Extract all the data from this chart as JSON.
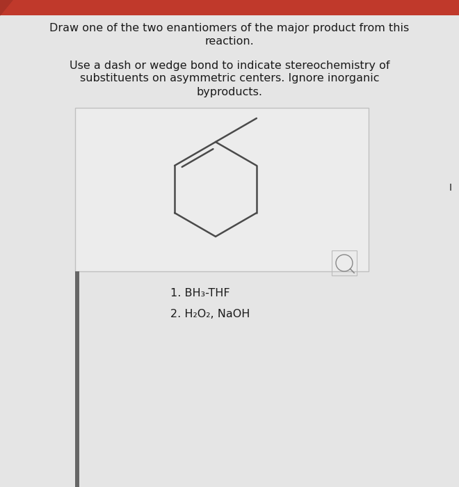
{
  "bg_color": "#e5e5e5",
  "header_color": "#c0392b",
  "text_color": "#1a1a1a",
  "bond_color": "#4a4a4a",
  "box_bg": "#ececec",
  "box_border": "#c0c0c0",
  "title_line1": "Draw one of the two enantiomers of the major product from this",
  "title_line2": "reaction.",
  "instruction_line1": "Use a dash or wedge bond to indicate stereochemistry of",
  "instruction_line2": "substituents on asymmetric centers. Ignore inorganic",
  "instruction_line3": "byproducts.",
  "reagent1": "1. BH₃-THF",
  "reagent2": "2. H₂O₂, NaOH",
  "title_fontsize": 11.5,
  "instruction_fontsize": 11.5,
  "reagent_fontsize": 11.5
}
